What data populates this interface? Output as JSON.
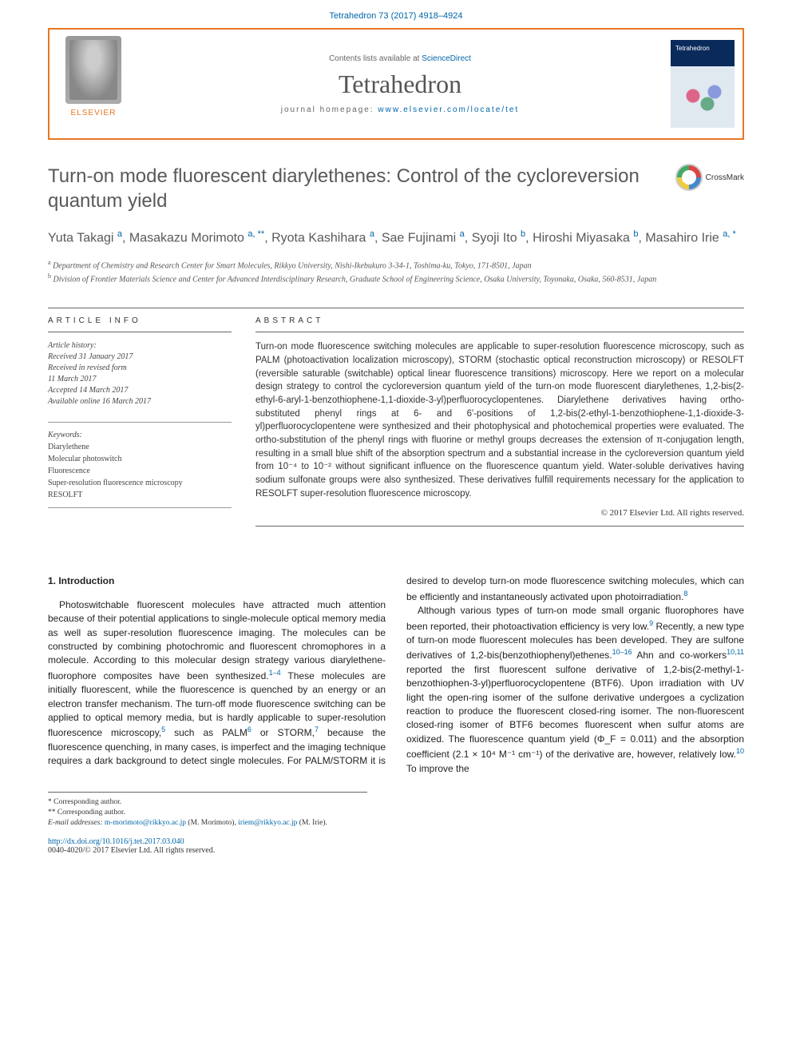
{
  "citation": {
    "text": "Tetrahedron 73 (2017) 4918–4924",
    "url": "#"
  },
  "header": {
    "contents_prefix": "Contents lists available at ",
    "contents_link": "ScienceDirect",
    "journal": "Tetrahedron",
    "homepage_prefix": "journal homepage: ",
    "homepage_link": "www.elsevier.com/locate/tet",
    "publisher": "ELSEVIER",
    "cover_title": "Tetrahedron"
  },
  "article": {
    "title": "Turn-on mode fluorescent diarylethenes: Control of the cycloreversion quantum yield",
    "crossmark": "CrossMark",
    "authors_html": "Yuta Takagi <span class='sup'>a</span>, Masakazu Morimoto <span class='sup'>a, **</span>, Ryota Kashihara <span class='sup'>a</span>, Sae Fujinami <span class='sup'>a</span>, Syoji Ito <span class='sup'>b</span>, Hiroshi Miyasaka <span class='sup'>b</span>, Masahiro Irie <span class='sup'>a, *</span>",
    "affiliations": [
      {
        "sup": "a",
        "text": "Department of Chemistry and Research Center for Smart Molecules, Rikkyo University, Nishi-Ikebukuro 3-34-1, Toshima-ku, Tokyo, 171-8501, Japan"
      },
      {
        "sup": "b",
        "text": "Division of Frontier Materials Science and Center for Advanced Interdisciplinary Research, Graduate School of Engineering Science, Osaka University, Toyonaka, Osaka, 560-8531, Japan"
      }
    ]
  },
  "info": {
    "article_info_label": "ARTICLE INFO",
    "abstract_label": "ABSTRACT",
    "history_head": "Article history:",
    "history": [
      "Received 31 January 2017",
      "Received in revised form",
      "11 March 2017",
      "Accepted 14 March 2017",
      "Available online 16 March 2017"
    ],
    "keywords_head": "Keywords:",
    "keywords": [
      "Diarylethene",
      "Molecular photoswitch",
      "Fluorescence",
      "Super-resolution fluorescence microscopy",
      "RESOLFT"
    ],
    "abstract": "Turn-on mode fluorescence switching molecules are applicable to super-resolution fluorescence microscopy, such as PALM (photoactivation localization microscopy), STORM (stochastic optical reconstruction microscopy) or RESOLFT (reversible saturable (switchable) optical linear fluorescence transitions) microscopy. Here we report on a molecular design strategy to control the cycloreversion quantum yield of the turn-on mode fluorescent diarylethenes, 1,2-bis(2-ethyl-6-aryl-1-benzothiophene-1,1-dioxide-3-yl)perfluorocyclopentenes. Diarylethene derivatives having ortho-substituted phenyl rings at 6- and 6'-positions of 1,2-bis(2-ethyl-1-benzothiophene-1,1-dioxide-3-yl)perfluorocyclopentene were synthesized and their photophysical and photochemical properties were evaluated. The ortho-substitution of the phenyl rings with fluorine or methyl groups decreases the extension of π-conjugation length, resulting in a small blue shift of the absorption spectrum and a substantial increase in the cycloreversion quantum yield from 10⁻⁴ to 10⁻² without significant influence on the fluorescence quantum yield. Water-soluble derivatives having sodium sulfonate groups were also synthesized. These derivatives fulfill requirements necessary for the application to RESOLFT super-resolution fluorescence microscopy.",
    "copyright": "© 2017 Elsevier Ltd. All rights reserved."
  },
  "body": {
    "section_heading": "1. Introduction",
    "col1_p1": "Photoswitchable fluorescent molecules have attracted much attention because of their potential applications to single-molecule optical memory media as well as super-resolution fluorescence imaging. The molecules can be constructed by combining photochromic and fluorescent chromophores in a molecule. According to this molecular design strategy various diarylethene-fluorophore composites have been synthesized.",
    "col1_ref1": "1–4",
    "col1_p1b": " These molecules are initially fluorescent, while the fluorescence is quenched by an energy or an electron transfer mechanism. The turn-off mode fluorescence switching can be applied to optical memory media, but is hardly applicable to super-resolution fluorescence microscopy,",
    "col1_ref2": "5",
    "col1_p1c": " such as PALM",
    "col1_ref3": "6",
    "col1_p1d": " or STORM,",
    "col1_ref4": "7",
    "col1_p1e": " because the fluorescence quenching,",
    "col2_p1": "in many cases, is imperfect and the imaging technique requires a dark background to detect single molecules. For PALM/STORM it is desired to develop turn-on mode fluorescence switching molecules, which can be efficiently and instantaneously activated upon photoirradiation.",
    "col2_ref1": "8",
    "col2_p2a": "Although various types of turn-on mode small organic fluorophores have been reported, their photoactivation efficiency is very low.",
    "col2_ref2": "9",
    "col2_p2b": " Recently, a new type of turn-on mode fluorescent molecules has been developed. They are sulfone derivatives of 1,2-bis(benzothiophenyl)ethenes.",
    "col2_ref3": "10–16",
    "col2_p2c": " Ahn and co-workers",
    "col2_ref4": "10,11",
    "col2_p2d": " reported the first fluorescent sulfone derivative of 1,2-bis(2-methyl-1-benzothiophen-3-yl)perfluorocyclopentene (BTF6). Upon irradiation with UV light the open-ring isomer of the sulfone derivative undergoes a cyclization reaction to produce the fluorescent closed-ring isomer. The non-fluorescent closed-ring isomer of BTF6 becomes fluorescent when sulfur atoms are oxidized. The fluorescence quantum yield (Φ_F = 0.011) and the absorption coefficient (2.1 × 10⁴ M⁻¹ cm⁻¹) of the derivative are, however, relatively low.",
    "col2_ref5": "10",
    "col2_p2e": " To improve the"
  },
  "footer": {
    "corr1": "* Corresponding author.",
    "corr2": "** Corresponding author.",
    "email_label": "E-mail addresses: ",
    "email1": "m-morimoto@rikkyo.ac.jp",
    "email1_name": " (M. Morimoto), ",
    "email2": "iriem@rikkyo.ac.jp",
    "email2_name": " (M. Irie)."
  },
  "doi": {
    "url_text": "http://dx.doi.org/10.1016/j.tet.2017.03.040",
    "issn_line": "0040-4020/© 2017 Elsevier Ltd. All rights reserved."
  },
  "colors": {
    "accent_orange": "#e87722",
    "link_blue": "#0066aa",
    "text_gray": "#595959"
  }
}
